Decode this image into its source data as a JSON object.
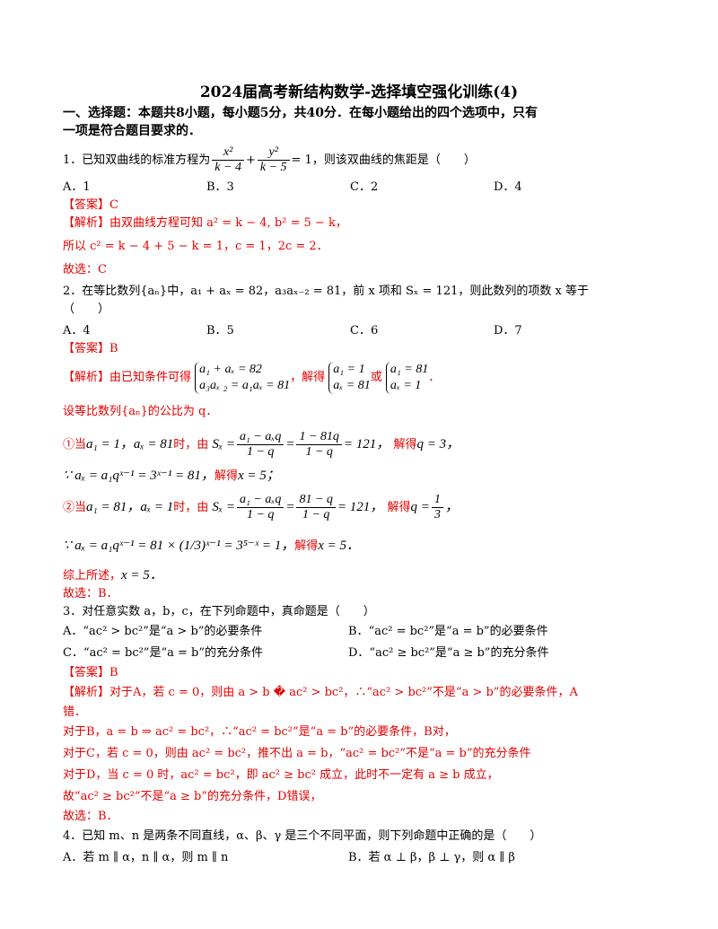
{
  "title": "2024届高考新结构数学-选择填空强化训练(4)",
  "section1": {
    "line1": "一、选择题：本题共8小题，每小题5分，共40分．在每小题给出的四个选项中，只有",
    "line2": "一项是符合题目要求的．"
  },
  "q1": {
    "stem_pre": "1．已知双曲线的标准方程为",
    "frac1_num": "x²",
    "frac1_den": "k − 4",
    "plus": "+",
    "frac2_num": "y²",
    "frac2_den": "k − 5",
    "stem_post": "= 1，则该双曲线的焦距是（　　）",
    "options": [
      "A．1",
      "B．3",
      "C．2",
      "D．4"
    ],
    "answer": "【答案】C",
    "analysis_label": "【解析】",
    "analysis_1": "由双曲线方程可知 a² = k − 4, b² = 5 − k，",
    "analysis_2": "所以 c² = k − 4 + 5 − k = 1，c = 1，2c = 2．",
    "conclusion": "故选：C"
  },
  "q2": {
    "stem_1": "2．在等比数列{aₙ}中，a₁ + aₓ = 82，a₃aₓ₋₂ = 81，前 x 项和 Sₓ = 121，则此数列的项数 x 等于",
    "stem_2": "（　　）",
    "options": [
      "A．4",
      "B．5",
      "C．6",
      "D．7"
    ],
    "answer": "【答案】B",
    "analysis_label": "【解析】",
    "analysis_pre": "由已知条件可得",
    "sys1_a": "a₁ + aₓ = 82",
    "sys1_b": "a₃aₓ ₂ = a₁aₓ = 81",
    "solve_word": "，解得",
    "sys2_a": "a₁ = 1",
    "sys2_b": "aₓ = 81",
    "or_word": "或",
    "sys3_a": "a₁ = 81",
    "sys3_b": "aₓ = 1",
    "end_mark": "．",
    "set_q": "设等比数列{aₙ}的公比为 q．",
    "case1_pre": "①当",
    "case1_cond": "a₁ = 1，aₓ = 81",
    "case1_time": "时，由",
    "case1_S": "Sₓ =",
    "case1_f1_num": "a₁ − aₓq",
    "case1_f1_den": "1 − q",
    "case1_eq": "=",
    "case1_f2_num": "1 − 81q",
    "case1_f2_den": "1 − q",
    "case1_res": "= 121，",
    "case1_solve": "解得",
    "case1_q": "q = 3，",
    "case1_b": "∵ aₓ = a₁qˣ⁻¹ = 3ˣ⁻¹ = 81，",
    "case1_b_solve": "解得",
    "case1_b_x": "x = 5；",
    "case2_pre": "②当",
    "case2_cond": "a₁ = 81，aₓ = 1",
    "case2_time": "时，由",
    "case2_S": "Sₓ =",
    "case2_f1_num": "a₁ − aₓq",
    "case2_f1_den": "1 − q",
    "case2_eq": "=",
    "case2_f2_num": "81 − q",
    "case2_f2_den": "1 − q",
    "case2_res": "= 121，",
    "case2_solve": "解得",
    "case2_q_pre": "q =",
    "case2_q_num": "1",
    "case2_q_den": "3",
    "case2_q_post": "，",
    "case2_b": "∵ aₓ = a₁qˣ⁻¹ = 81 × (1/3)ˣ⁻¹ = 3⁵⁻ˣ = 1，",
    "case2_b_solve": "解得",
    "case2_b_x": "x = 5．",
    "summary_pre": "综上所述，",
    "summary_x": "x = 5．",
    "conclusion": "故选：B．"
  },
  "q3": {
    "stem": "3．对任意实数 a，b，c，在下列命题中，真命题是（　　）",
    "optA": "A．“ac² > bc²”是“a > b”的必要条件",
    "optB": "B．“ac² = bc²”是“a = b”的必要条件",
    "optC": "C．“ac² = bc²”是“a = b”的充分条件",
    "optD": "D．“ac² ≥ bc²”是“a ≥ b”的充分条件",
    "answer": "【答案】B",
    "analysis_label": "【解析】",
    "a1": "对于A，若 c = 0，则由 a > b � ac² > bc²，∴“ac² > bc²”不是“a > b”的必要条件，A",
    "a1b": "错．",
    "a2": "对于B，a = b ⇒ ac² = bc²，∴“ac² = bc²”是“a = b”的必要条件，B对，",
    "a3": "对于C，若 c = 0，则由 ac² = bc²，推不出 a = b，“ac² = bc²”不是“a = b”的充分条件",
    "a4": "对于D，当 c = 0 时，ac² = bc²，即 ac² ≥ bc² 成立，此时不一定有 a ≥ b 成立，",
    "a5": "故“ac² ≥ bc²”不是“a ≥ b”的充分条件，D错误，",
    "conclusion": "故选：B．"
  },
  "q4": {
    "stem": "4．已知 m、n 是两条不同直线，α、β、γ 是三个不同平面，则下列命题中正确的是（　　）",
    "optA": "A．若 m ∥ α，n ∥ α，则 m ∥ n",
    "optB": "B．若 α ⊥ β，β ⊥ γ，则 α ∥ β"
  }
}
